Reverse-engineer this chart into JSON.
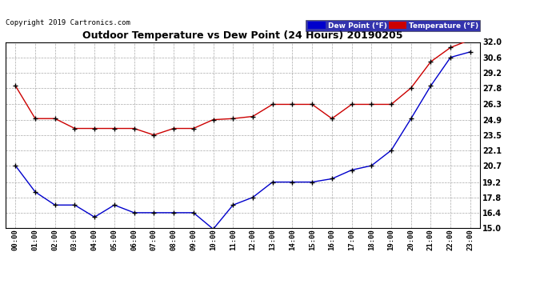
{
  "title": "Outdoor Temperature vs Dew Point (24 Hours) 20190205",
  "copyright": "Copyright 2019 Cartronics.com",
  "hours": [
    "00:00",
    "01:00",
    "02:00",
    "03:00",
    "04:00",
    "05:00",
    "06:00",
    "07:00",
    "08:00",
    "09:00",
    "10:00",
    "11:00",
    "12:00",
    "13:00",
    "14:00",
    "15:00",
    "16:00",
    "17:00",
    "18:00",
    "19:00",
    "20:00",
    "21:00",
    "22:00",
    "23:00"
  ],
  "temperature": [
    28.0,
    25.0,
    25.0,
    24.1,
    24.1,
    24.1,
    24.1,
    23.5,
    24.1,
    24.1,
    24.9,
    25.0,
    25.2,
    26.3,
    26.3,
    26.3,
    25.0,
    26.3,
    26.3,
    26.3,
    27.8,
    30.2,
    31.5,
    32.2
  ],
  "dew_point": [
    20.7,
    18.3,
    17.1,
    17.1,
    16.0,
    17.1,
    16.4,
    16.4,
    16.4,
    16.4,
    14.9,
    17.1,
    17.8,
    19.2,
    19.2,
    19.2,
    19.5,
    20.3,
    20.7,
    22.1,
    25.0,
    28.0,
    30.6,
    31.1
  ],
  "temp_color": "#cc0000",
  "dew_color": "#0000cc",
  "marker_color": "#000000",
  "ylim_min": 15.0,
  "ylim_max": 32.0,
  "yticks": [
    15.0,
    16.4,
    17.8,
    19.2,
    20.7,
    22.1,
    23.5,
    24.9,
    26.3,
    27.8,
    29.2,
    30.6,
    32.0
  ],
  "grid_color": "#aaaaaa",
  "bg_color": "#ffffff",
  "legend_dew_bg": "#0000cc",
  "legend_temp_bg": "#cc0000",
  "legend_dew_label": "Dew Point (°F)",
  "legend_temp_label": "Temperature (°F)"
}
